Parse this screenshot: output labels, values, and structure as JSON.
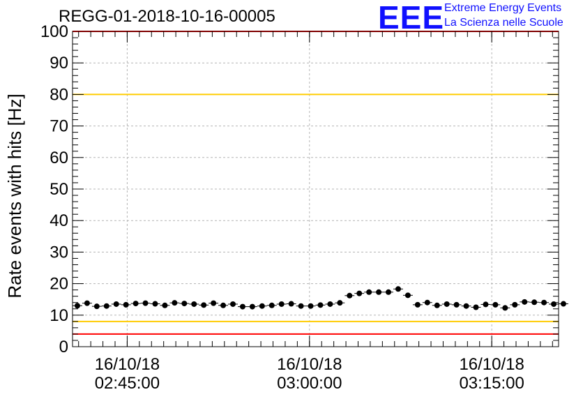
{
  "header": {
    "title": "REGG-01-2018-10-16-00005",
    "logo_letters": "EEE",
    "logo_line1": "Extreme Energy Events",
    "logo_line2": "La Scienza nelle Scuole"
  },
  "colors": {
    "points": "#000000",
    "grid": "#b4b4b4",
    "limit_red": "#ff0000",
    "limit_yellow": "#ffcc00",
    "logo": "#1010ff"
  },
  "chart_data": {
    "type": "scatter",
    "title": "REGG-01-2018-10-16-00005",
    "ylabel": "Rate events with hits [Hz]",
    "xlabel": "",
    "ylim": [
      0,
      100
    ],
    "xlim": [
      "02:40:30",
      "03:20:30"
    ],
    "yticks": [
      0,
      10,
      20,
      30,
      40,
      50,
      60,
      70,
      80,
      90,
      100
    ],
    "xticks": [
      {
        "date": "16/10/18",
        "time": "02:45:00"
      },
      {
        "date": "16/10/18",
        "time": "03:00:00"
      },
      {
        "date": "16/10/18",
        "time": "03:15:00"
      }
    ],
    "grid": true,
    "reference_lines": [
      {
        "y": 100,
        "color": "red"
      },
      {
        "y": 80,
        "color": "yellow"
      },
      {
        "y": 8,
        "color": "yellow"
      },
      {
        "y": 4,
        "color": "red"
      }
    ],
    "x_time_start": "02:40:30",
    "x_time_step_min": 0.8,
    "y_error": 0.7,
    "values": [
      13.0,
      13.8,
      12.8,
      12.9,
      13.5,
      13.3,
      13.7,
      13.8,
      13.6,
      13.1,
      13.9,
      13.7,
      13.5,
      13.2,
      13.8,
      13.1,
      13.5,
      12.7,
      12.7,
      12.9,
      13.1,
      13.5,
      13.6,
      12.9,
      12.9,
      13.2,
      13.5,
      13.9,
      16.2,
      16.9,
      17.3,
      17.3,
      17.3,
      18.3,
      16.3,
      13.3,
      14.0,
      13.1,
      13.5,
      13.3,
      12.9,
      12.5,
      13.4,
      13.3,
      12.3,
      13.3,
      14.2,
      14.1,
      14.0,
      13.5,
      13.6
    ]
  }
}
